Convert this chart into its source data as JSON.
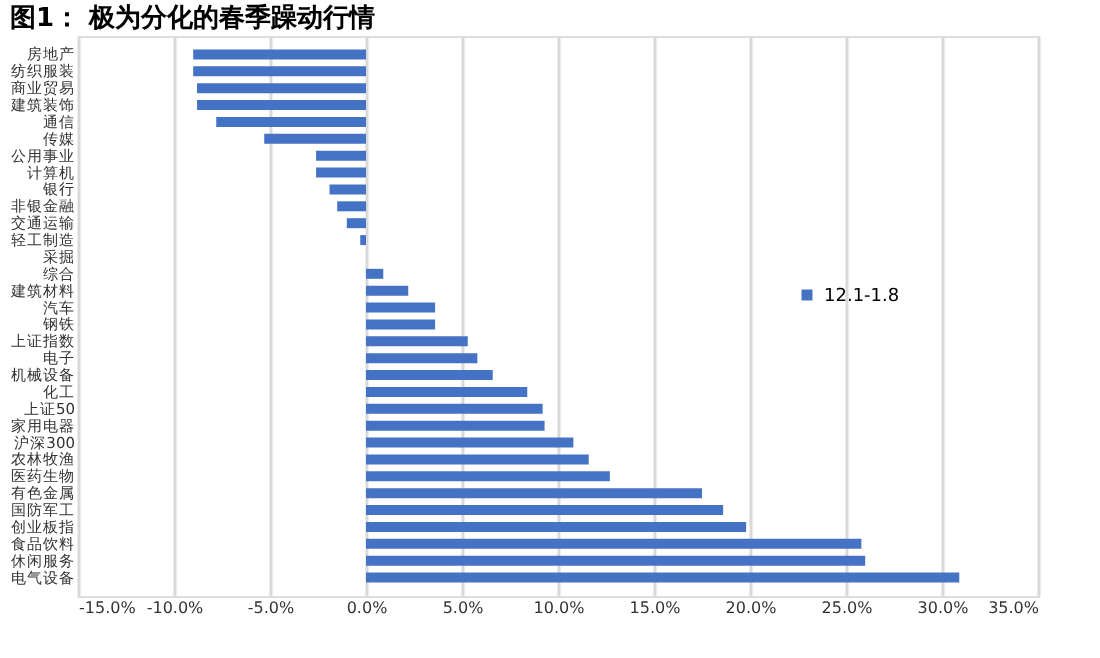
{
  "chart_data": {
    "type": "bar",
    "orientation": "horizontal",
    "title": "图1： 极为分化的春季躁动行情",
    "categories": [
      "房地产",
      "纺织服装",
      "商业贸易",
      "建筑装饰",
      "通信",
      "传媒",
      "公用事业",
      "计算机",
      "银行",
      "非银金融",
      "交通运输",
      "轻工制造",
      "采掘",
      "综合",
      "建筑材料",
      "汽车",
      "钢铁",
      "上证指数",
      "电子",
      "机械设备",
      "化工",
      "上证50",
      "家用电器",
      "沪深300",
      "农林牧渔",
      "医药生物",
      "有色金属",
      "国防军工",
      "创业板指",
      "食品饮料",
      "休闲服务",
      "电气设备"
    ],
    "series": [
      {
        "name": "12.1-1.8",
        "color": "#4472c4",
        "values": [
          -9.0,
          -9.0,
          -8.8,
          -8.8,
          -7.8,
          -5.3,
          -2.6,
          -2.6,
          -1.9,
          -1.5,
          -1.0,
          -0.3,
          0.0,
          0.9,
          2.2,
          3.6,
          3.6,
          5.3,
          5.8,
          6.6,
          8.4,
          9.2,
          9.3,
          10.8,
          11.6,
          12.7,
          17.5,
          18.6,
          19.8,
          25.8,
          26.0,
          30.9
        ]
      }
    ],
    "xlim": [
      -15,
      35
    ],
    "xticks": [
      {
        "value": -15,
        "label": "-15.0%"
      },
      {
        "value": -10,
        "label": "-10.0%"
      },
      {
        "value": -5,
        "label": "-5.0%"
      },
      {
        "value": 0,
        "label": "0.0%"
      },
      {
        "value": 5,
        "label": "5.0%"
      },
      {
        "value": 10,
        "label": "10.0%"
      },
      {
        "value": 15,
        "label": "15.0%"
      },
      {
        "value": 20,
        "label": "20.0%"
      },
      {
        "value": 25,
        "label": "25.0%"
      },
      {
        "value": 30,
        "label": "30.0%"
      },
      {
        "value": 35,
        "label": "35.0%"
      }
    ],
    "grid": "x",
    "legend": "right"
  }
}
